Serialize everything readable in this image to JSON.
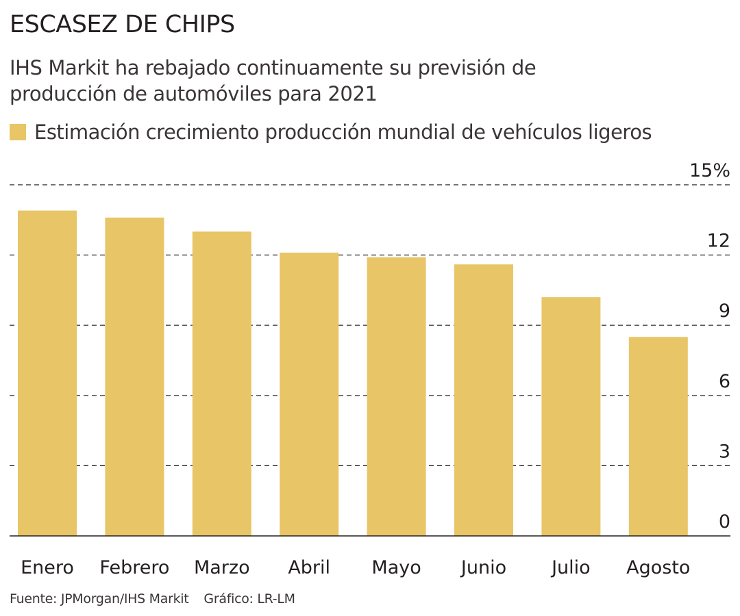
{
  "header": {
    "title": "ESCASEZ DE CHIPS",
    "subtitle": "IHS Markit ha rebajado continuamente su previsión de producción de automóviles para 2021"
  },
  "legend": {
    "label": "Estimación crecimiento producción mundial de vehículos ligeros"
  },
  "footer": {
    "source": "Fuente: JPMorgan/IHS Markit",
    "credit": "Gráfico: LR-LM"
  },
  "colors": {
    "bar": "#e8c566",
    "grid": "#231f20",
    "text": "#231f20"
  },
  "chart_data": {
    "type": "bar",
    "categories": [
      "Enero",
      "Febrero",
      "Marzo",
      "Abril",
      "Mayo",
      "Junio",
      "Julio",
      "Agosto"
    ],
    "series": [
      {
        "name": "Estimación crecimiento producción mundial de vehículos ligeros",
        "values": [
          13.9,
          13.6,
          13.0,
          12.1,
          11.9,
          11.6,
          10.2,
          8.5
        ]
      }
    ],
    "y_ticks": [
      0,
      3,
      6,
      9,
      12,
      15
    ],
    "y_tick_labels": [
      "0",
      "3",
      "6",
      "9",
      "12",
      "15%"
    ],
    "ylim": [
      0,
      15
    ],
    "grid": "dashed horizontal",
    "y_axis_side": "right",
    "legend_position": "top-left"
  }
}
